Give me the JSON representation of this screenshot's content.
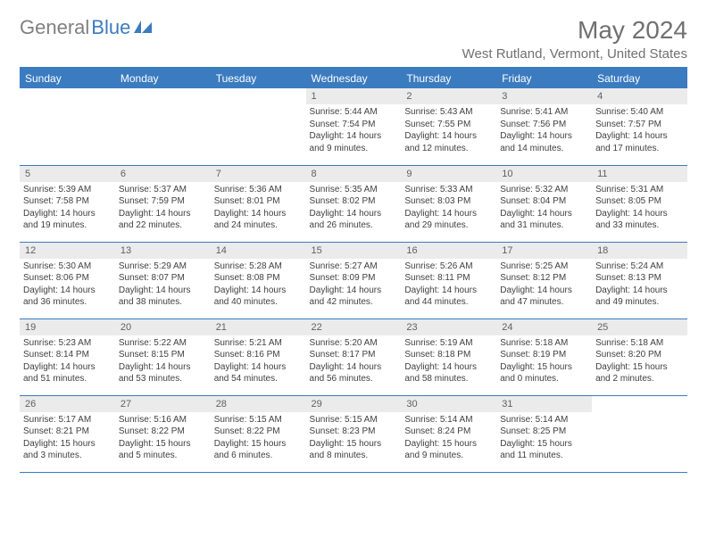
{
  "brand": {
    "part1": "General",
    "part2": "Blue"
  },
  "title": "May 2024",
  "location": "West Rutland, Vermont, United States",
  "day_headers": [
    "Sunday",
    "Monday",
    "Tuesday",
    "Wednesday",
    "Thursday",
    "Friday",
    "Saturday"
  ],
  "colors": {
    "accent": "#3b7bbf",
    "header_text": "#ffffff",
    "body_text": "#404040",
    "muted_text": "#707070",
    "daynum_bg": "#ebebeb",
    "page_bg": "#ffffff"
  },
  "weeks": [
    [
      null,
      null,
      null,
      {
        "n": "1",
        "sr": "5:44 AM",
        "ss": "7:54 PM",
        "dl": "14 hours and 9 minutes."
      },
      {
        "n": "2",
        "sr": "5:43 AM",
        "ss": "7:55 PM",
        "dl": "14 hours and 12 minutes."
      },
      {
        "n": "3",
        "sr": "5:41 AM",
        "ss": "7:56 PM",
        "dl": "14 hours and 14 minutes."
      },
      {
        "n": "4",
        "sr": "5:40 AM",
        "ss": "7:57 PM",
        "dl": "14 hours and 17 minutes."
      }
    ],
    [
      {
        "n": "5",
        "sr": "5:39 AM",
        "ss": "7:58 PM",
        "dl": "14 hours and 19 minutes."
      },
      {
        "n": "6",
        "sr": "5:37 AM",
        "ss": "7:59 PM",
        "dl": "14 hours and 22 minutes."
      },
      {
        "n": "7",
        "sr": "5:36 AM",
        "ss": "8:01 PM",
        "dl": "14 hours and 24 minutes."
      },
      {
        "n": "8",
        "sr": "5:35 AM",
        "ss": "8:02 PM",
        "dl": "14 hours and 26 minutes."
      },
      {
        "n": "9",
        "sr": "5:33 AM",
        "ss": "8:03 PM",
        "dl": "14 hours and 29 minutes."
      },
      {
        "n": "10",
        "sr": "5:32 AM",
        "ss": "8:04 PM",
        "dl": "14 hours and 31 minutes."
      },
      {
        "n": "11",
        "sr": "5:31 AM",
        "ss": "8:05 PM",
        "dl": "14 hours and 33 minutes."
      }
    ],
    [
      {
        "n": "12",
        "sr": "5:30 AM",
        "ss": "8:06 PM",
        "dl": "14 hours and 36 minutes."
      },
      {
        "n": "13",
        "sr": "5:29 AM",
        "ss": "8:07 PM",
        "dl": "14 hours and 38 minutes."
      },
      {
        "n": "14",
        "sr": "5:28 AM",
        "ss": "8:08 PM",
        "dl": "14 hours and 40 minutes."
      },
      {
        "n": "15",
        "sr": "5:27 AM",
        "ss": "8:09 PM",
        "dl": "14 hours and 42 minutes."
      },
      {
        "n": "16",
        "sr": "5:26 AM",
        "ss": "8:11 PM",
        "dl": "14 hours and 44 minutes."
      },
      {
        "n": "17",
        "sr": "5:25 AM",
        "ss": "8:12 PM",
        "dl": "14 hours and 47 minutes."
      },
      {
        "n": "18",
        "sr": "5:24 AM",
        "ss": "8:13 PM",
        "dl": "14 hours and 49 minutes."
      }
    ],
    [
      {
        "n": "19",
        "sr": "5:23 AM",
        "ss": "8:14 PM",
        "dl": "14 hours and 51 minutes."
      },
      {
        "n": "20",
        "sr": "5:22 AM",
        "ss": "8:15 PM",
        "dl": "14 hours and 53 minutes."
      },
      {
        "n": "21",
        "sr": "5:21 AM",
        "ss": "8:16 PM",
        "dl": "14 hours and 54 minutes."
      },
      {
        "n": "22",
        "sr": "5:20 AM",
        "ss": "8:17 PM",
        "dl": "14 hours and 56 minutes."
      },
      {
        "n": "23",
        "sr": "5:19 AM",
        "ss": "8:18 PM",
        "dl": "14 hours and 58 minutes."
      },
      {
        "n": "24",
        "sr": "5:18 AM",
        "ss": "8:19 PM",
        "dl": "15 hours and 0 minutes."
      },
      {
        "n": "25",
        "sr": "5:18 AM",
        "ss": "8:20 PM",
        "dl": "15 hours and 2 minutes."
      }
    ],
    [
      {
        "n": "26",
        "sr": "5:17 AM",
        "ss": "8:21 PM",
        "dl": "15 hours and 3 minutes."
      },
      {
        "n": "27",
        "sr": "5:16 AM",
        "ss": "8:22 PM",
        "dl": "15 hours and 5 minutes."
      },
      {
        "n": "28",
        "sr": "5:15 AM",
        "ss": "8:22 PM",
        "dl": "15 hours and 6 minutes."
      },
      {
        "n": "29",
        "sr": "5:15 AM",
        "ss": "8:23 PM",
        "dl": "15 hours and 8 minutes."
      },
      {
        "n": "30",
        "sr": "5:14 AM",
        "ss": "8:24 PM",
        "dl": "15 hours and 9 minutes."
      },
      {
        "n": "31",
        "sr": "5:14 AM",
        "ss": "8:25 PM",
        "dl": "15 hours and 11 minutes."
      },
      null
    ]
  ],
  "labels": {
    "sunrise": "Sunrise: ",
    "sunset": "Sunset: ",
    "daylight": "Daylight: "
  }
}
